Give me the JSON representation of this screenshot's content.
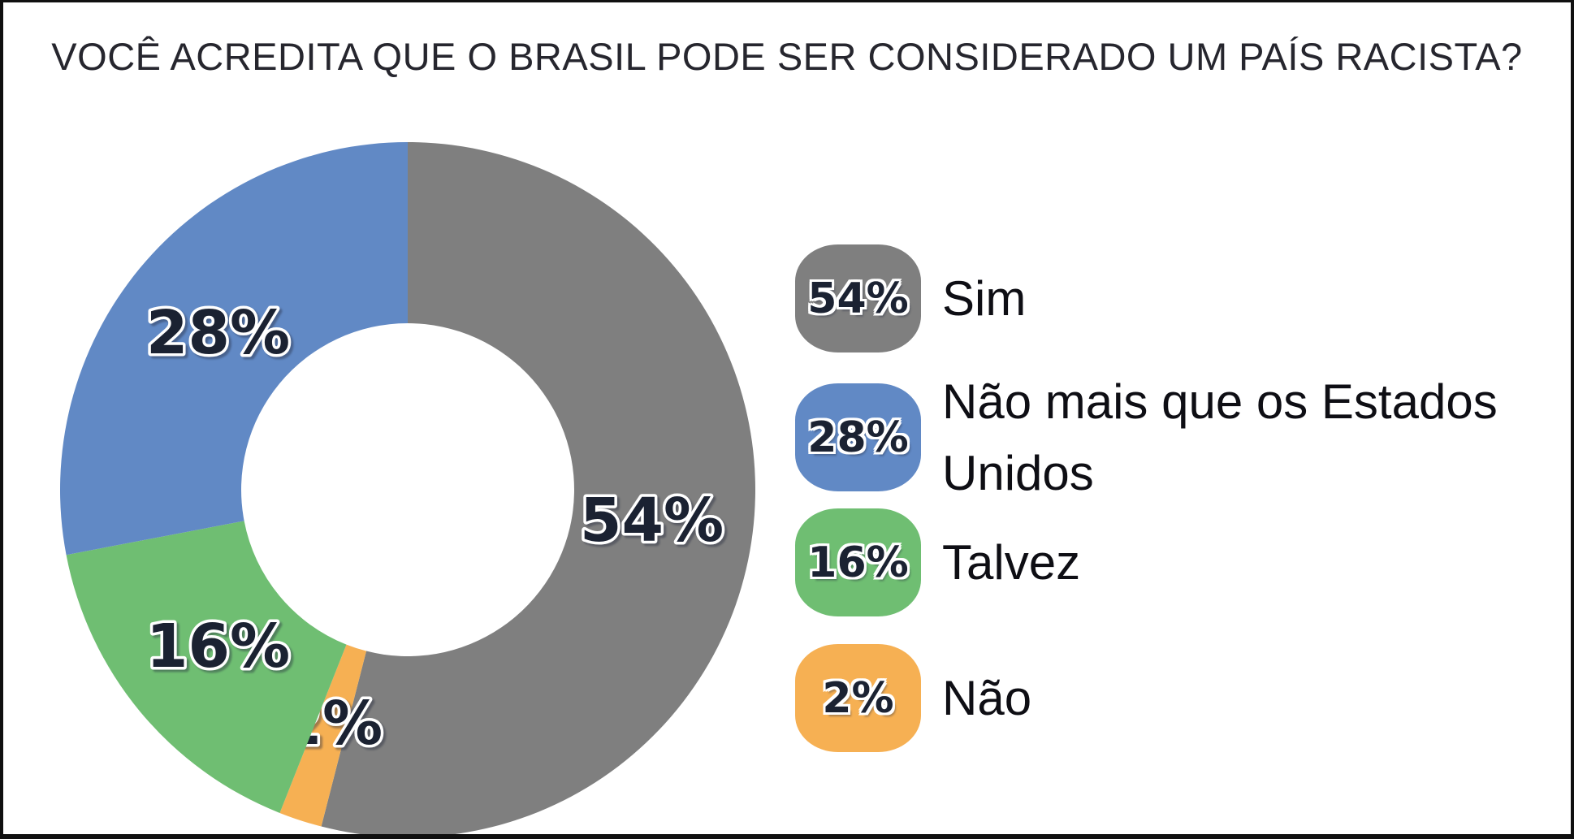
{
  "title": "VOCÊ ACREDITA QUE O BRASIL PODE SER CONSIDERADO UM PAÍS RACISTA?",
  "frame": {
    "background": "#FFFFFF",
    "border_color": "#101010"
  },
  "chart_data": {
    "type": "pie",
    "subtype": "donut",
    "title": "VOCÊ ACREDITA QUE O BRASIL PODE SER CONSIDERADO UM PAÍS RACISTA?",
    "categories": [
      "Sim",
      "Não mais que os Estados Unidos",
      "Talvez",
      "Não"
    ],
    "values": [
      54,
      28,
      16,
      2
    ],
    "hole_ratio": 0.48,
    "start_angle": "12-oclock",
    "direction": "clockwise",
    "legend_position": "right",
    "grid": false,
    "slices_draw_order_clockwise_from_top": [
      {
        "label": "Sim",
        "value": 54,
        "value_label": "54%",
        "color": "#7F7F7F"
      },
      {
        "label": "Não",
        "value": 2,
        "value_label": "2%",
        "color": "#F6B053"
      },
      {
        "label": "Talvez",
        "value": 16,
        "value_label": "16%",
        "color": "#6FBE72"
      },
      {
        "label": "Não mais que os Estados Unidos",
        "value": 28,
        "value_label": "28%",
        "color": "#6189C5"
      }
    ],
    "label_text_color": "#1B2232",
    "label_outline_color": "#FFFFFF"
  },
  "legend": {
    "items": [
      {
        "value_label": "54%",
        "label": "Sim",
        "color": "#7F7F7F"
      },
      {
        "value_label": "28%",
        "label": "Não mais que os Estados Unidos",
        "color": "#6189C5"
      },
      {
        "value_label": "16%",
        "label": "Talvez",
        "color": "#6FBE72"
      },
      {
        "value_label": "2%",
        "label": "Não",
        "color": "#F6B053"
      }
    ]
  }
}
